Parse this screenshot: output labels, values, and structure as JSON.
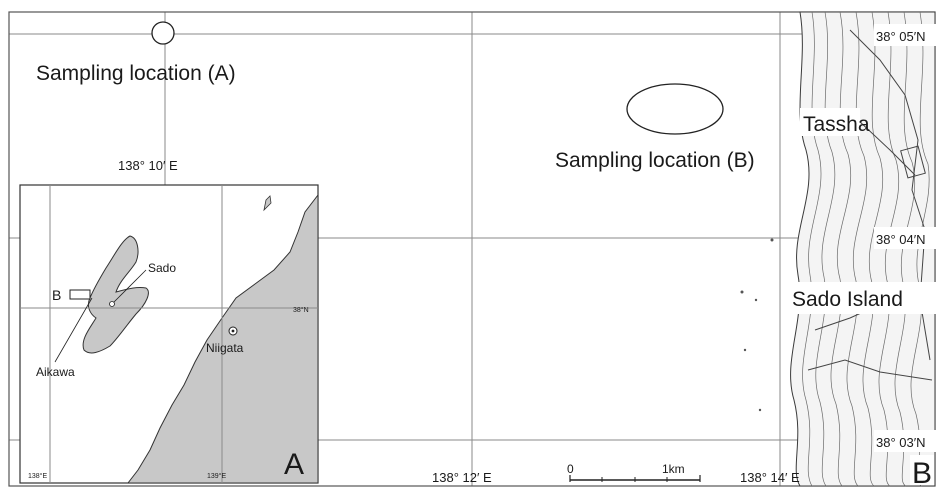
{
  "main_map": {
    "panel_letter": "B",
    "coords_right": [
      "38° 05′N",
      "38° 04′N",
      "38° 03′N"
    ],
    "coords_bottom": [
      "138° 12′ E",
      "138° 14′ E"
    ],
    "coord_top": "138° 10′ E",
    "place_labels": {
      "town": "Tassha",
      "island": "Sado Island"
    },
    "sampling": {
      "a_label": "Sampling location (A)",
      "b_label": "Sampling location (B)"
    },
    "scale_bar": {
      "start": "0",
      "end": "1km"
    }
  },
  "inset_map": {
    "panel_letter": "A",
    "labels": {
      "sado": "Sado",
      "box_b": "B",
      "aikawa": "Aikawa",
      "niigata": "Niigata",
      "lat": "38°N",
      "lon_left": "138°E",
      "lon_right": "139°E"
    },
    "land_color": "#c8c8c8"
  }
}
